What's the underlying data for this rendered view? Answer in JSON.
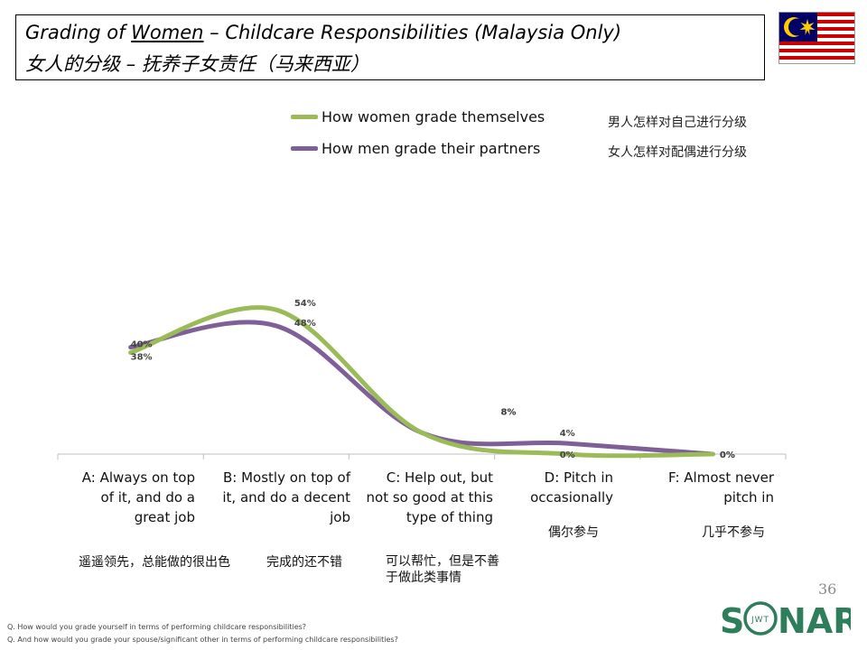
{
  "header": {
    "title_en_prefix": "Grading of ",
    "title_en_underlined": "Women",
    "title_en_suffix": " – Childcare Responsibilities (Malaysia Only)",
    "title_zh": "女人的分级 – 抚养子女责任（马来西亚）"
  },
  "legend": [
    {
      "label": "How women grade themselves",
      "label_zh": "男人怎样对自己进行分级",
      "color": "#9bbb59"
    },
    {
      "label": "How men grade their partners",
      "label_zh": "女人怎样对配偶进行分级",
      "color": "#7f5f97"
    }
  ],
  "categories": {
    "en": [
      [
        "A: Always on top",
        "of it, and do a",
        "great job"
      ],
      [
        "B: Mostly on top of",
        "it, and do a decent",
        "job"
      ],
      [
        "C: Help out, but",
        "not so good at this",
        "type of thing"
      ],
      [
        "D: Pitch in",
        "occasionally"
      ],
      [
        "F: Almost never",
        "pitch in"
      ]
    ],
    "zh": [
      [
        "遥遥领先，总能做的很出色"
      ],
      [
        "完成的还不错"
      ],
      [
        "可以帮忙，但是不善",
        "于做此类事情"
      ],
      [
        "偶尔参与"
      ],
      [
        "几乎不参与"
      ]
    ]
  },
  "chart_data": {
    "type": "line",
    "title": "Grading of Women – Childcare Responsibilities (Malaysia Only)",
    "categories": [
      "A: Always on top of it, and do a great job",
      "B: Mostly on top of it, and do a decent job",
      "C: Help out, but not so good at this type of thing",
      "D: Pitch in occasionally",
      "F: Almost never pitch in"
    ],
    "series": [
      {
        "name": "How women grade themselves",
        "values": [
          38,
          54,
          8,
          0,
          0
        ],
        "labels": [
          "38%",
          "54%",
          "8%",
          "0%",
          "0%"
        ],
        "color": "#9bbb59"
      },
      {
        "name": "How men grade their partners",
        "values": [
          40,
          48,
          8,
          4,
          0
        ],
        "labels": [
          "40%",
          "48%",
          "8%",
          "4%",
          "0%"
        ],
        "color": "#7f5f97"
      }
    ],
    "ylim": [
      0,
      100
    ],
    "smooth": true,
    "grid": false,
    "xlabel": "",
    "ylabel": ""
  },
  "page_number": "36",
  "footnotes": [
    "Q. How would you grade yourself in terms of performing childcare responsibilities?",
    "Q. And how would you grade your spouse/significant other in terms of performing childcare responsibilities?"
  ],
  "logo": {
    "left": "S",
    "middle": "JWT",
    "right": "NAR",
    "color": "#2e7d5b"
  }
}
